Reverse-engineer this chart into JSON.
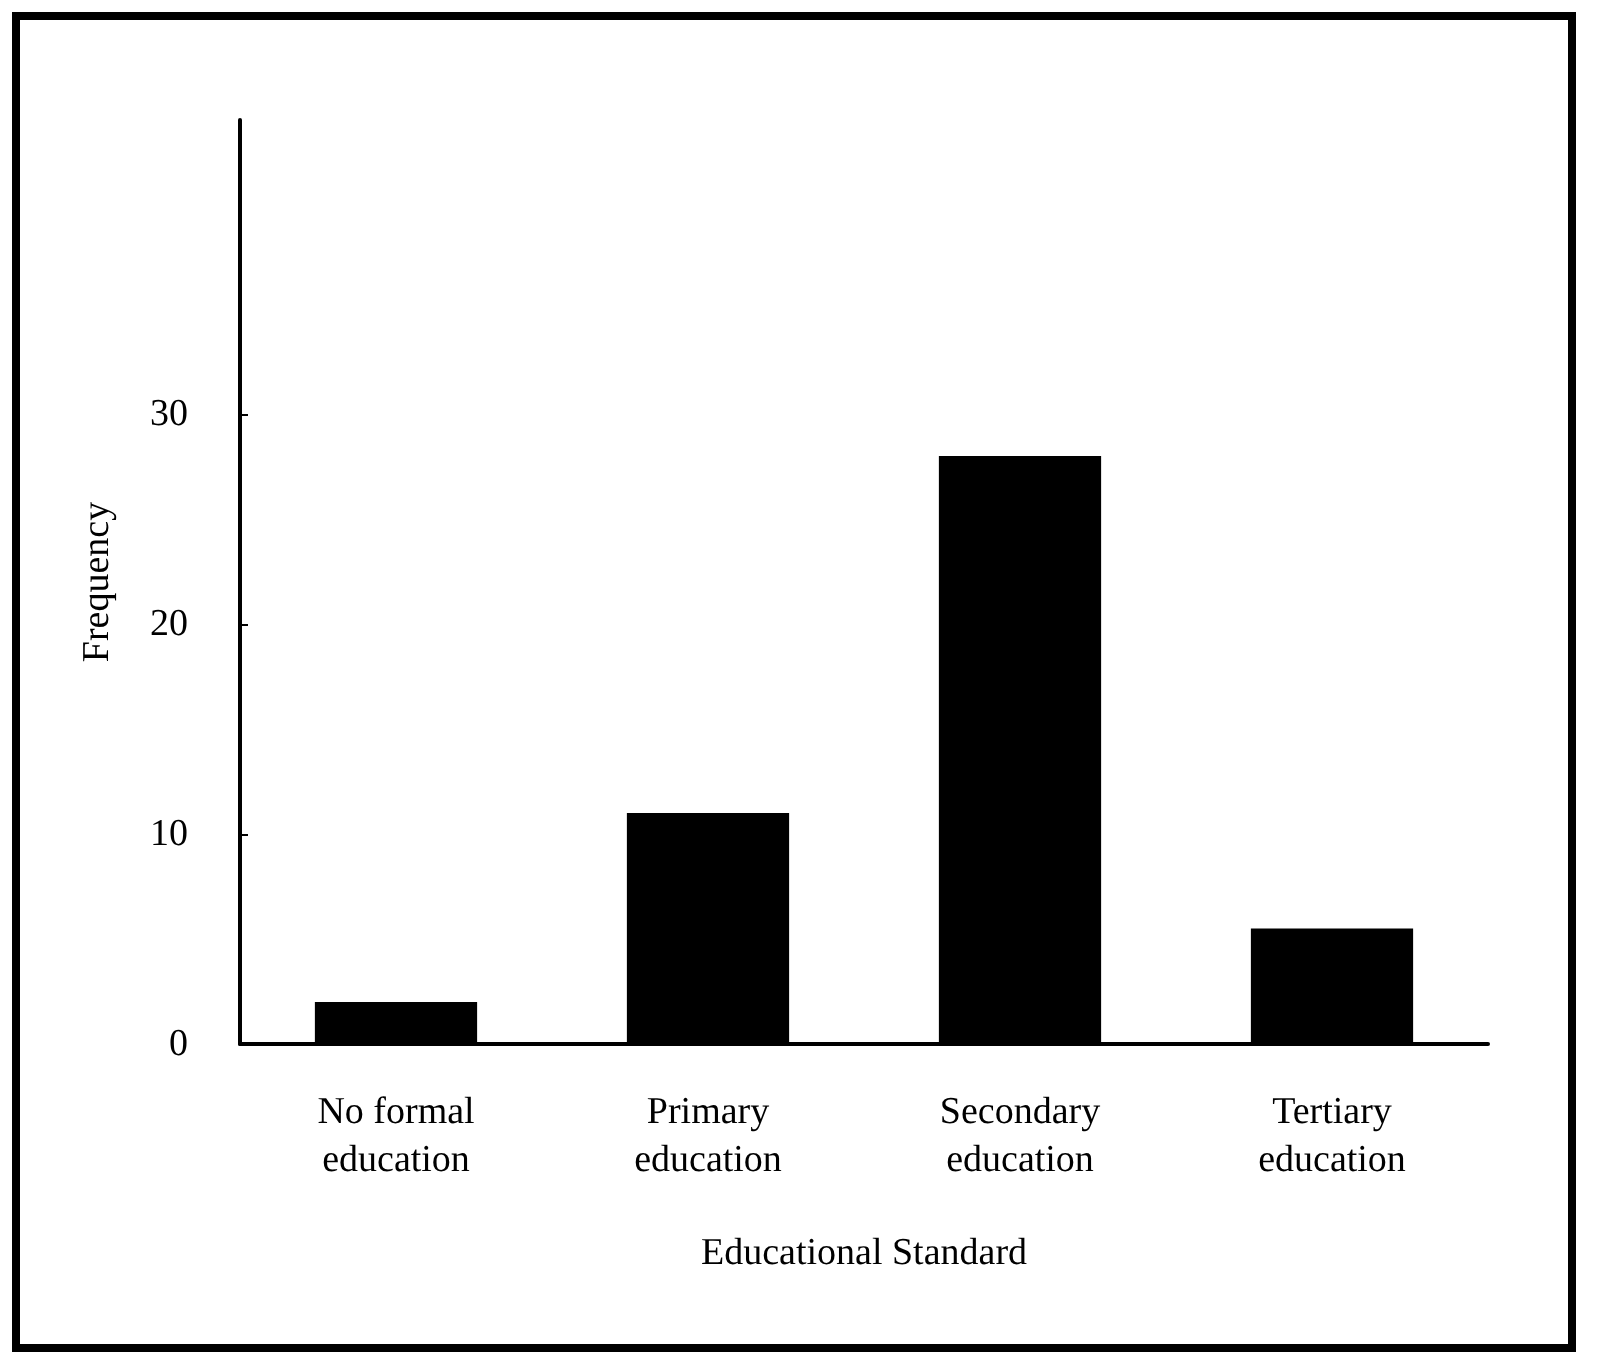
{
  "chart_data": {
    "type": "bar",
    "xlabel": "Educational Standard",
    "ylabel": "Frequency",
    "categories": [
      "No formal\neducation",
      "Primary\neducation",
      "Secondary\neducation",
      "Tertiary\neducation"
    ],
    "values": [
      2,
      11,
      28,
      5.5
    ],
    "color": "#000000",
    "ylim": [
      0,
      44
    ],
    "yticks": [
      0,
      10,
      20,
      30
    ],
    "grid": false
  }
}
